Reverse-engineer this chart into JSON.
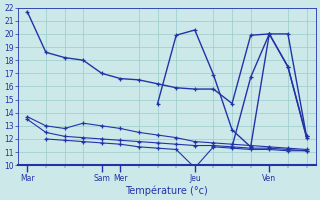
{
  "title": "Température (°c)",
  "background_color": "#cce8e8",
  "grid_color": "#99cccc",
  "line_color": "#2233aa",
  "ylim": [
    10,
    22
  ],
  "yticks": [
    10,
    11,
    12,
    13,
    14,
    15,
    16,
    17,
    18,
    19,
    20,
    21,
    22
  ],
  "xlim": [
    0,
    16
  ],
  "day_tick_positions": [
    0.5,
    4.5,
    5.5,
    9.5,
    13.5
  ],
  "day_labels": [
    "Mar",
    "Sam",
    "Mer",
    "Jeu",
    "Ven"
  ],
  "minor_xticks": [
    0.5,
    1.5,
    2.5,
    3.5,
    4.5,
    5.5,
    6.5,
    7.5,
    8.5,
    9.5,
    10.5,
    11.5,
    12.5,
    13.5,
    14.5,
    15.5
  ],
  "series": [
    {
      "name": "line1_high",
      "x": [
        0.5,
        1.5,
        2.5,
        3.5,
        4.5,
        5.5,
        6.5,
        7.5,
        8.5,
        9.5,
        10.5,
        11.5,
        12.5,
        13.5,
        14.5,
        15.5
      ],
      "y": [
        21.7,
        18.6,
        18.2,
        18.0,
        17.0,
        16.6,
        16.5,
        16.2,
        15.9,
        15.8,
        15.8,
        14.7,
        19.9,
        20.0,
        17.5,
        12.2
      ]
    },
    {
      "name": "line2_spike",
      "x": [
        7.5,
        8.5,
        9.5,
        10.5,
        11.5,
        12.5,
        13.5,
        14.5,
        15.5
      ],
      "y": [
        14.7,
        19.9,
        20.3,
        16.9,
        12.7,
        11.4,
        20.0,
        20.0,
        12.2
      ]
    },
    {
      "name": "line3_jeu_spike",
      "x": [
        11.5,
        12.5,
        13.5,
        14.5,
        15.5
      ],
      "y": [
        11.4,
        16.7,
        20.0,
        17.5,
        12.1
      ]
    },
    {
      "name": "line4_low1",
      "x": [
        0.5,
        1.5,
        2.5,
        3.5,
        4.5,
        5.5,
        6.5,
        7.5,
        8.5,
        9.5,
        10.5,
        11.5,
        12.5,
        13.5,
        14.5,
        15.5
      ],
      "y": [
        13.7,
        13.0,
        12.8,
        13.2,
        13.0,
        12.8,
        12.5,
        12.3,
        12.1,
        11.8,
        11.7,
        11.6,
        11.5,
        11.4,
        11.3,
        11.2
      ]
    },
    {
      "name": "line5_low2",
      "x": [
        0.5,
        1.5,
        2.5,
        3.5,
        4.5,
        5.5,
        6.5,
        7.5,
        8.5,
        9.5,
        10.5,
        11.5,
        12.5,
        13.5,
        14.5,
        15.5
      ],
      "y": [
        13.5,
        12.5,
        12.2,
        12.1,
        12.0,
        11.9,
        11.8,
        11.7,
        11.6,
        11.5,
        11.5,
        11.4,
        11.3,
        11.3,
        11.2,
        11.1
      ]
    },
    {
      "name": "line6_bottom",
      "x": [
        1.5,
        2.5,
        3.5,
        4.5,
        5.5,
        6.5,
        7.5,
        8.5,
        9.5,
        10.5,
        11.5,
        12.5,
        13.5,
        14.5,
        15.5
      ],
      "y": [
        12.0,
        11.9,
        11.8,
        11.7,
        11.6,
        11.4,
        11.3,
        11.2,
        9.8,
        11.4,
        11.3,
        11.2,
        11.2,
        11.1,
        11.1
      ]
    }
  ]
}
